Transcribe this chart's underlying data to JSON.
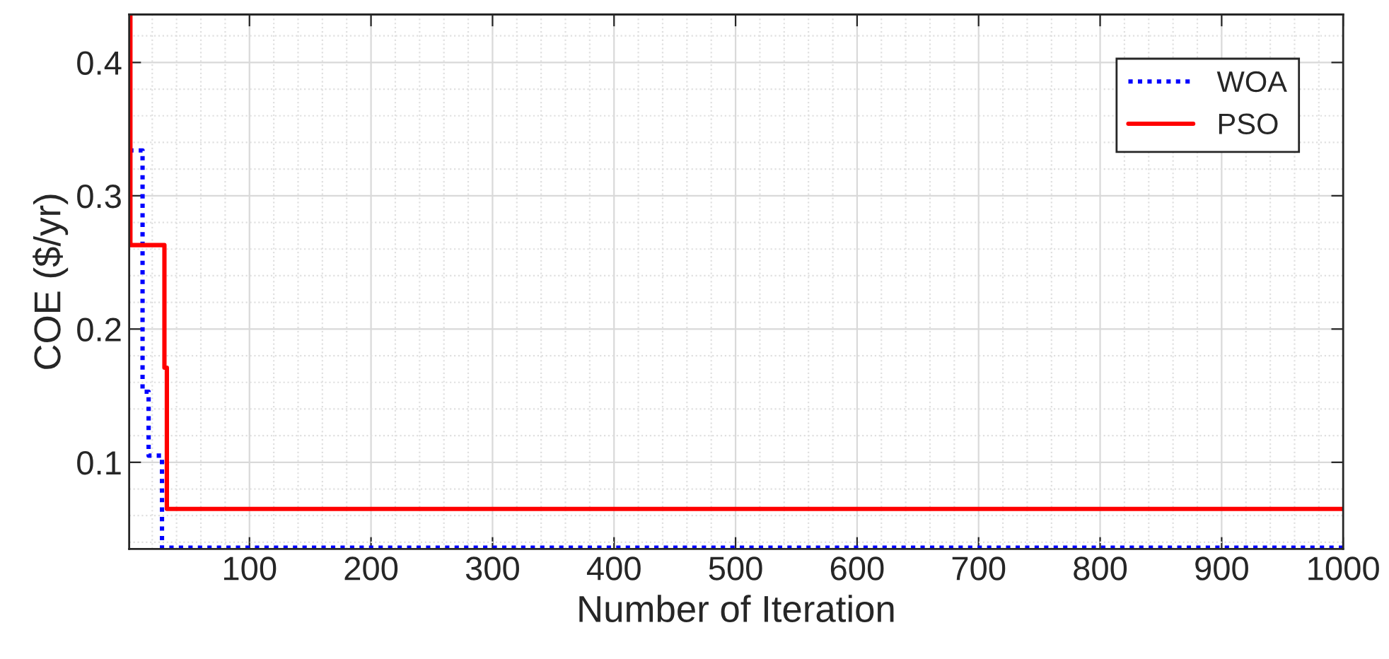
{
  "chart_data": {
    "type": "step",
    "xlabel": "Number of Iteration",
    "ylabel": "COE ($/yr)",
    "xlim": [
      1,
      1000
    ],
    "ylim": [
      0.035,
      0.436
    ],
    "xticks": [
      100,
      200,
      300,
      400,
      500,
      600,
      700,
      800,
      900,
      1000
    ],
    "yticks": [
      0.1,
      0.2,
      0.3,
      0.4
    ],
    "grid": true,
    "legend": "top right",
    "series": [
      {
        "name": "WOA",
        "color": "#0000ff",
        "line_style": "dotted",
        "x": [
          1,
          12,
          17,
          28,
          1000
        ],
        "values": [
          0.334,
          0.153,
          0.105,
          0.036,
          0.036
        ]
      },
      {
        "name": "PSO",
        "color": "#ff0000",
        "line_style": "solid",
        "x": [
          1,
          2,
          30,
          32,
          1000
        ],
        "values": [
          0.436,
          0.263,
          0.171,
          0.065,
          0.065
        ]
      }
    ]
  }
}
